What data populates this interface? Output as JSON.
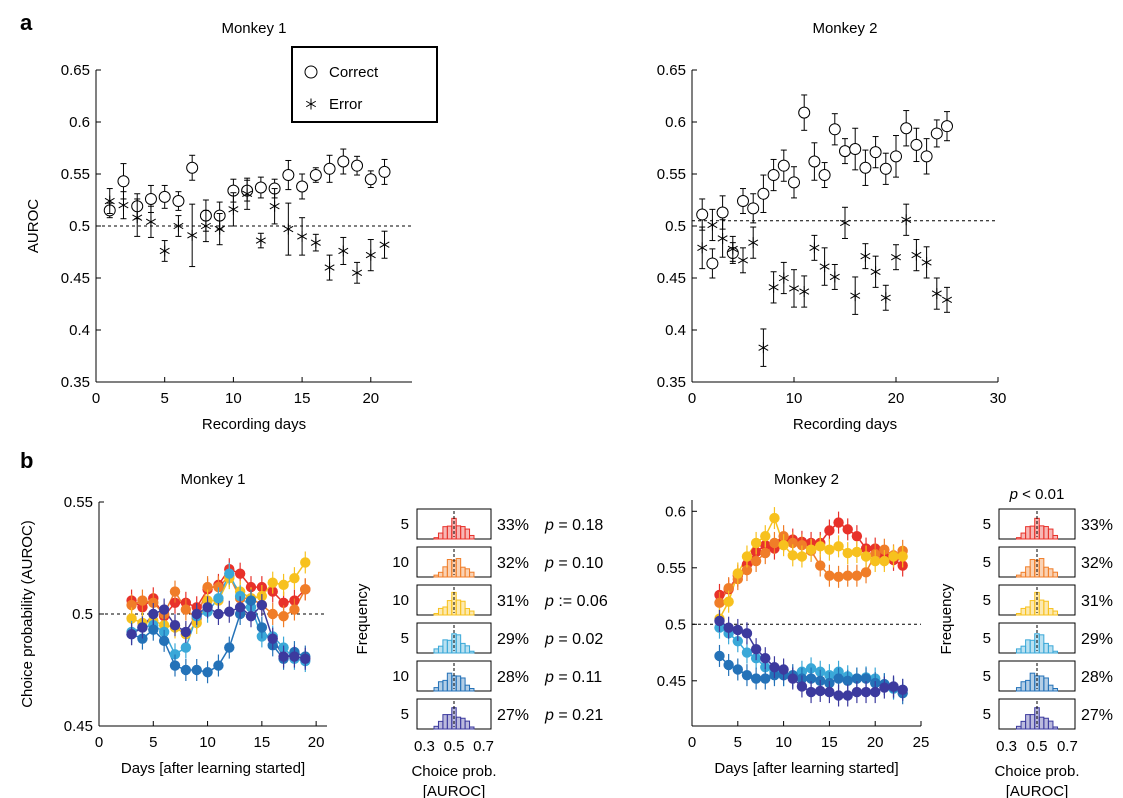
{
  "panel_labels": {
    "a": "a",
    "b": "b"
  },
  "chart_data": [
    {
      "id": "a1",
      "type": "scatter",
      "title": "Monkey 1",
      "xlabel": "Recording days",
      "ylabel": "AUROC",
      "xlim": [
        0,
        23
      ],
      "ylim": [
        0.35,
        0.65
      ],
      "xticks": [
        0,
        5,
        10,
        15,
        20
      ],
      "yticks": [
        0.35,
        0.4,
        0.45,
        0.5,
        0.55,
        0.6,
        0.65
      ],
      "reference_line": 0.5,
      "legend": {
        "position": "top-right",
        "entries": [
          {
            "label": "Correct",
            "marker": "circle"
          },
          {
            "label": "Error",
            "marker": "asterisk"
          }
        ]
      },
      "series": [
        {
          "name": "Correct",
          "marker": "circle",
          "x": [
            1,
            2,
            3,
            4,
            5,
            6,
            7,
            8,
            9,
            10,
            11,
            12,
            13,
            14,
            15,
            16,
            17,
            18,
            19,
            20,
            21
          ],
          "y": [
            0.515,
            0.543,
            0.519,
            0.526,
            0.528,
            0.524,
            0.556,
            0.51,
            0.51,
            0.534,
            0.534,
            0.537,
            0.536,
            0.549,
            0.538,
            0.549,
            0.555,
            0.562,
            0.558,
            0.545,
            0.552
          ],
          "err": [
            0.007,
            0.017,
            0.012,
            0.013,
            0.011,
            0.009,
            0.012,
            0.015,
            0.013,
            0.011,
            0.01,
            0.01,
            0.009,
            0.014,
            0.012,
            0.007,
            0.013,
            0.012,
            0.009,
            0.008,
            0.012
          ]
        },
        {
          "name": "Error",
          "marker": "asterisk",
          "x": [
            1,
            2,
            3,
            4,
            5,
            6,
            7,
            8,
            9,
            10,
            11,
            12,
            13,
            14,
            15,
            16,
            17,
            18,
            19,
            20,
            21
          ],
          "y": [
            0.524,
            0.52,
            0.508,
            0.504,
            0.476,
            0.5,
            0.491,
            0.5,
            0.497,
            0.516,
            0.531,
            0.486,
            0.519,
            0.497,
            0.49,
            0.484,
            0.46,
            0.476,
            0.455,
            0.472,
            0.482
          ],
          "err": [
            0.012,
            0.013,
            0.018,
            0.015,
            0.01,
            0.01,
            0.03,
            0.015,
            0.015,
            0.016,
            0.015,
            0.007,
            0.017,
            0.025,
            0.018,
            0.008,
            0.012,
            0.013,
            0.01,
            0.015,
            0.013
          ]
        }
      ]
    },
    {
      "id": "a2",
      "type": "scatter",
      "title": "Monkey 2",
      "xlabel": "Recording days",
      "ylabel": "",
      "xlim": [
        0,
        30
      ],
      "ylim": [
        0.35,
        0.65
      ],
      "xticks": [
        0,
        10,
        20,
        30
      ],
      "yticks": [
        0.35,
        0.4,
        0.45,
        0.5,
        0.55,
        0.6,
        0.65
      ],
      "reference_line": 0.505,
      "series": [
        {
          "name": "Correct",
          "marker": "circle",
          "x": [
            1,
            2,
            3,
            4,
            5,
            6,
            7,
            8,
            9,
            10,
            11,
            12,
            13,
            14,
            15,
            16,
            17,
            18,
            19,
            20,
            21,
            22,
            23,
            24,
            25
          ],
          "y": [
            0.511,
            0.464,
            0.513,
            0.474,
            0.524,
            0.517,
            0.531,
            0.549,
            0.558,
            0.542,
            0.609,
            0.562,
            0.549,
            0.593,
            0.572,
            0.574,
            0.556,
            0.571,
            0.555,
            0.567,
            0.594,
            0.578,
            0.567,
            0.589,
            0.596
          ],
          "err": [
            0.015,
            0.014,
            0.016,
            0.01,
            0.012,
            0.014,
            0.018,
            0.015,
            0.015,
            0.015,
            0.017,
            0.018,
            0.012,
            0.015,
            0.012,
            0.02,
            0.017,
            0.015,
            0.015,
            0.02,
            0.017,
            0.016,
            0.017,
            0.013,
            0.014
          ]
        },
        {
          "name": "Error",
          "marker": "asterisk",
          "x": [
            1,
            2,
            3,
            4,
            5,
            6,
            7,
            8,
            9,
            10,
            11,
            12,
            13,
            14,
            15,
            16,
            17,
            18,
            19,
            20,
            21,
            22,
            23,
            24,
            25
          ],
          "y": [
            0.479,
            0.501,
            0.488,
            0.478,
            0.467,
            0.484,
            0.383,
            0.441,
            0.45,
            0.44,
            0.437,
            0.479,
            0.461,
            0.451,
            0.503,
            0.433,
            0.471,
            0.456,
            0.431,
            0.47,
            0.506,
            0.472,
            0.465,
            0.435,
            0.429
          ],
          "err": [
            0.02,
            0.015,
            0.018,
            0.012,
            0.012,
            0.015,
            0.018,
            0.015,
            0.015,
            0.018,
            0.015,
            0.012,
            0.018,
            0.012,
            0.015,
            0.018,
            0.012,
            0.015,
            0.012,
            0.012,
            0.015,
            0.015,
            0.015,
            0.015,
            0.012
          ]
        }
      ]
    },
    {
      "id": "b1",
      "type": "line",
      "title": "Monkey 1",
      "xlabel": "Days [after learning started]",
      "ylabel": "Choice probability (AUROC)",
      "xlim": [
        0,
        21
      ],
      "ylim": [
        0.45,
        0.55
      ],
      "xticks": [
        0,
        5,
        10,
        15,
        20
      ],
      "yticks": [
        0.45,
        0.5,
        0.55
      ],
      "reference_line": 0.5,
      "x": [
        3,
        4,
        5,
        6,
        7,
        8,
        9,
        10,
        11,
        12,
        13,
        14,
        15,
        16,
        17,
        18,
        19
      ],
      "series": [
        {
          "color": "#e8312a",
          "y": [
            0.506,
            0.503,
            0.507,
            0.499,
            0.505,
            0.505,
            0.503,
            0.511,
            0.513,
            0.52,
            0.518,
            0.512,
            0.512,
            0.51,
            0.505,
            0.506,
            0.511
          ]
        },
        {
          "color": "#f07d28",
          "y": [
            0.504,
            0.506,
            0.505,
            0.5,
            0.51,
            0.502,
            0.498,
            0.512,
            0.512,
            0.517,
            0.507,
            0.507,
            0.504,
            0.5,
            0.499,
            0.502,
            0.511
          ]
        },
        {
          "color": "#f7c11e",
          "y": [
            0.498,
            0.496,
            0.497,
            0.495,
            0.494,
            0.491,
            0.496,
            0.506,
            0.506,
            0.516,
            0.51,
            0.507,
            0.508,
            0.514,
            0.513,
            0.516,
            0.523
          ]
        },
        {
          "color": "#3aa8d8",
          "y": [
            0.492,
            0.494,
            0.495,
            0.492,
            0.482,
            0.485,
            0.499,
            0.501,
            0.507,
            0.518,
            0.508,
            0.503,
            0.49,
            0.49,
            0.485,
            0.48,
            0.479
          ]
        },
        {
          "color": "#2472b8",
          "y": [
            0.491,
            0.489,
            0.493,
            0.488,
            0.477,
            0.475,
            0.475,
            0.474,
            0.477,
            0.485,
            0.5,
            0.506,
            0.494,
            0.486,
            0.48,
            0.483,
            0.481
          ]
        },
        {
          "color": "#3c3a9e",
          "y": [
            0.491,
            0.494,
            0.5,
            0.502,
            0.495,
            0.492,
            0.5,
            0.503,
            0.5,
            0.501,
            0.503,
            0.499,
            0.504,
            0.489,
            0.481,
            0.481,
            0.48
          ]
        }
      ]
    },
    {
      "id": "b2",
      "type": "line",
      "title": "Monkey 2",
      "xlabel": "Days [after learning started]",
      "ylabel": "",
      "xlim": [
        0,
        25
      ],
      "ylim": [
        0.41,
        0.61
      ],
      "xticks": [
        0,
        5,
        10,
        15,
        20,
        25
      ],
      "yticks": [
        0.45,
        0.5,
        0.55,
        0.6
      ],
      "reference_line": 0.5,
      "x": [
        3,
        4,
        5,
        6,
        7,
        8,
        9,
        10,
        11,
        12,
        13,
        14,
        15,
        16,
        17,
        18,
        19,
        20,
        21,
        22,
        23
      ],
      "series": [
        {
          "color": "#e8312a",
          "y": [
            0.526,
            0.531,
            0.543,
            0.553,
            0.564,
            0.57,
            0.567,
            0.574,
            0.575,
            0.573,
            0.572,
            0.572,
            0.583,
            0.59,
            0.584,
            0.578,
            0.567,
            0.567,
            0.56,
            0.557,
            0.552
          ]
        },
        {
          "color": "#f07d28",
          "y": [
            0.519,
            0.532,
            0.54,
            0.548,
            0.556,
            0.563,
            0.572,
            0.578,
            0.572,
            0.57,
            0.565,
            0.552,
            0.543,
            0.542,
            0.543,
            0.543,
            0.546,
            0.562,
            0.566,
            0.561,
            0.565
          ]
        },
        {
          "color": "#f7c11e",
          "y": [
            0.505,
            0.52,
            0.545,
            0.56,
            0.572,
            0.578,
            0.594,
            0.57,
            0.561,
            0.56,
            0.566,
            0.569,
            0.566,
            0.569,
            0.563,
            0.564,
            0.56,
            0.556,
            0.556,
            0.56,
            0.56
          ]
        },
        {
          "color": "#3aa8d8",
          "y": [
            0.497,
            0.492,
            0.485,
            0.475,
            0.47,
            0.462,
            0.458,
            0.455,
            0.453,
            0.458,
            0.461,
            0.458,
            0.455,
            0.458,
            0.454,
            0.452,
            0.453,
            0.452,
            0.447,
            0.443,
            0.442
          ]
        },
        {
          "color": "#2472b8",
          "y": [
            0.472,
            0.464,
            0.46,
            0.455,
            0.452,
            0.452,
            0.455,
            0.455,
            0.455,
            0.452,
            0.452,
            0.45,
            0.448,
            0.452,
            0.45,
            0.452,
            0.452,
            0.448,
            0.447,
            0.444,
            0.439
          ]
        },
        {
          "color": "#3c3a9e",
          "y": [
            0.503,
            0.497,
            0.495,
            0.492,
            0.478,
            0.47,
            0.462,
            0.46,
            0.452,
            0.445,
            0.44,
            0.441,
            0.44,
            0.437,
            0.437,
            0.44,
            0.44,
            0.44,
            0.444,
            0.445,
            0.442
          ]
        }
      ]
    },
    {
      "id": "b1h",
      "type": "bar",
      "xlabel": "Choice prob. [AUROC]",
      "ylabel": "Frequency",
      "xticks": [
        "0.3",
        "0.5",
        "0.7"
      ],
      "header": "",
      "rows": [
        {
          "ytick": "5",
          "pct": "33%",
          "p_prefix": "p",
          "p_text": " = 0.18",
          "color": "#e8312a"
        },
        {
          "ytick": "10",
          "pct": "32%",
          "p_prefix": "p",
          "p_text": " = 0.10",
          "color": "#f07d28"
        },
        {
          "ytick": "10",
          "pct": "31%",
          "p_prefix": "p",
          "p_text": " := 0.06",
          "color": "#f7c11e"
        },
        {
          "ytick": "5",
          "pct": "29%",
          "p_prefix": "p",
          "p_text": " = 0.02",
          "color": "#3aa8d8"
        },
        {
          "ytick": "10",
          "pct": "28%",
          "p_prefix": "p",
          "p_text": " = 0.11",
          "color": "#2472b8"
        },
        {
          "ytick": "5",
          "pct": "27%",
          "p_prefix": "p",
          "p_text": " = 0.21",
          "color": "#3c3a9e"
        }
      ]
    },
    {
      "id": "b2h",
      "type": "bar",
      "xlabel": "Choice prob. [AUROC]",
      "ylabel": "Frequency",
      "xticks": [
        "0.3",
        "0.5",
        "0.7"
      ],
      "header": {
        "p_prefix": "p",
        "text": " < 0.01"
      },
      "rows": [
        {
          "ytick": "5",
          "pct": "33%",
          "color": "#e8312a"
        },
        {
          "ytick": "5",
          "pct": "32%",
          "color": "#f07d28"
        },
        {
          "ytick": "5",
          "pct": "31%",
          "color": "#f7c11e"
        },
        {
          "ytick": "5",
          "pct": "29%",
          "color": "#3aa8d8"
        },
        {
          "ytick": "5",
          "pct": "28%",
          "color": "#2472b8"
        },
        {
          "ytick": "5",
          "pct": "27%",
          "color": "#3c3a9e"
        }
      ]
    }
  ]
}
